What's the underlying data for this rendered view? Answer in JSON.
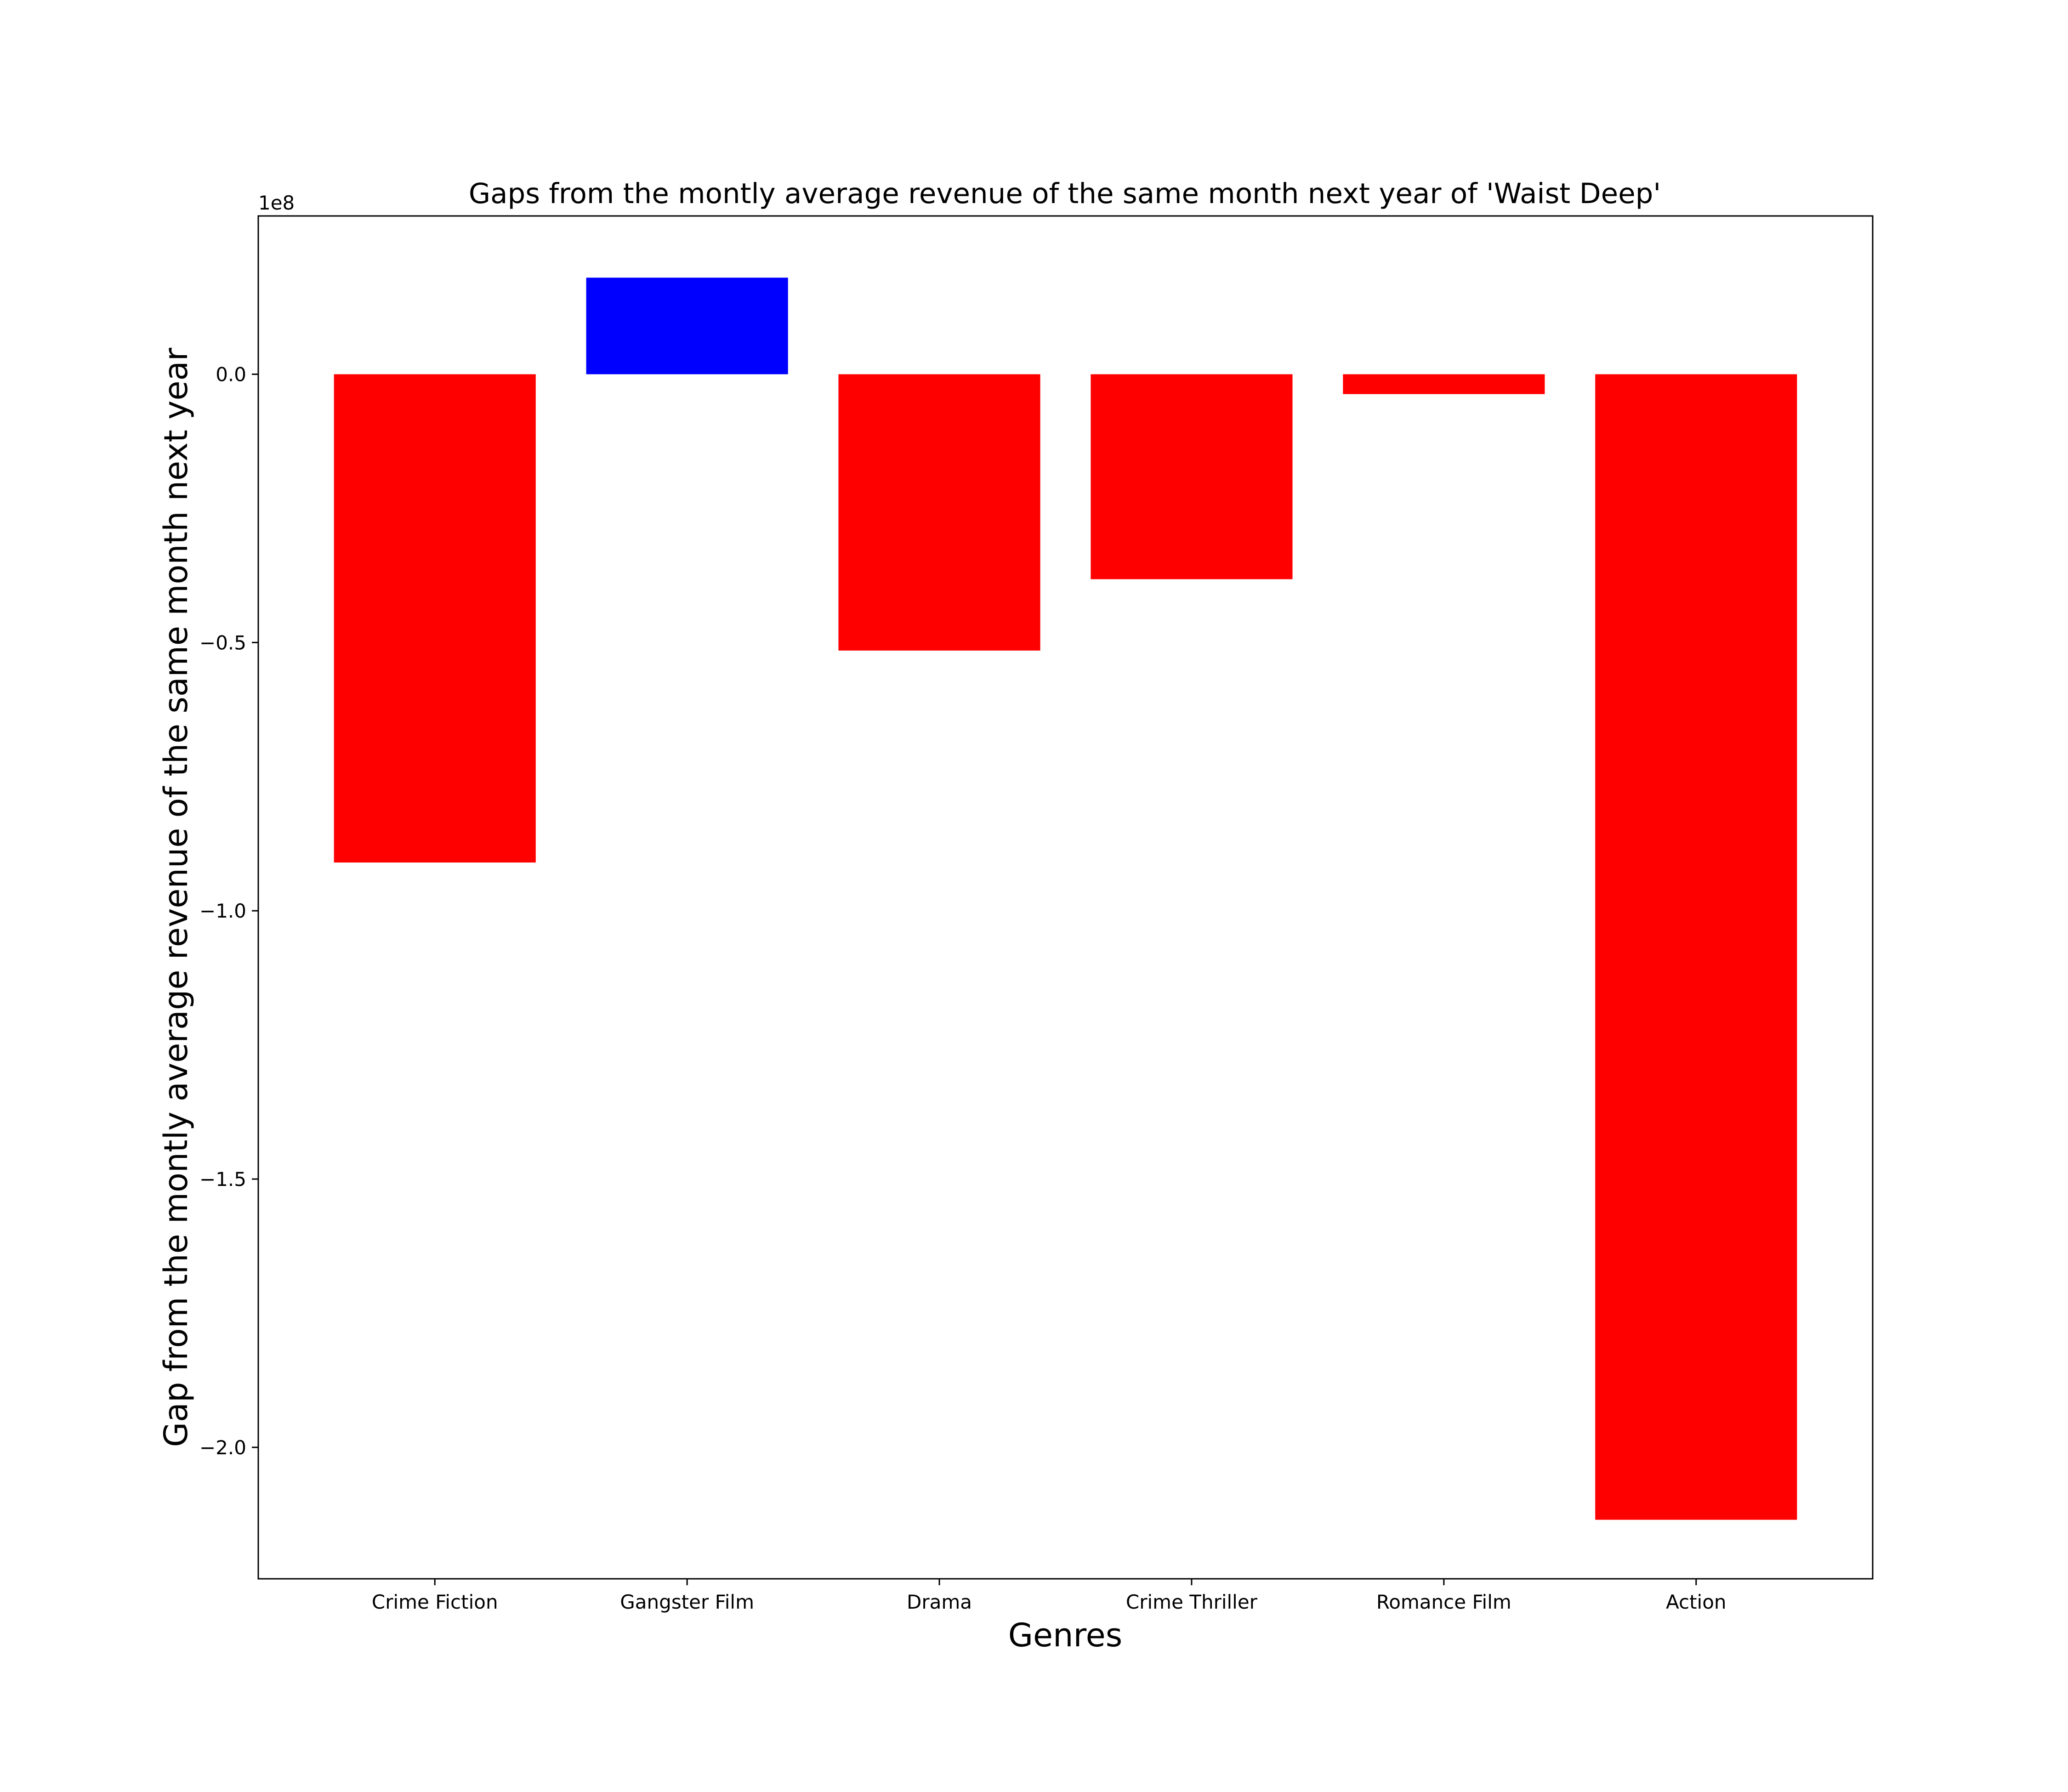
{
  "chart_data": {
    "type": "bar",
    "title": "Gaps from the montly average revenue of the same month next year of 'Waist Deep'",
    "xlabel": "Genres",
    "ylabel": "Gap from the montly average revenue of the same month next year",
    "y_offset_label": "1e8",
    "y_scale": 100000000,
    "categories": [
      "Crime Fiction",
      "Gangster Film",
      "Drama",
      "Crime Thriller",
      "Romance Film",
      "Action"
    ],
    "values": [
      -91000000,
      18000000,
      -51500000,
      -38200000,
      -3700000,
      -213500000
    ],
    "ylim": [
      -224500000,
      29500000
    ],
    "yticks": [
      0.0,
      -0.5,
      -1.0,
      -1.5,
      -2.0
    ],
    "ytick_labels": [
      "0.0",
      "−0.5",
      "−1.0",
      "−1.5",
      "−2.0"
    ],
    "colors": {
      "positive": "#0000ff",
      "negative": "#ff0000"
    },
    "grid": false,
    "legend": "none"
  }
}
